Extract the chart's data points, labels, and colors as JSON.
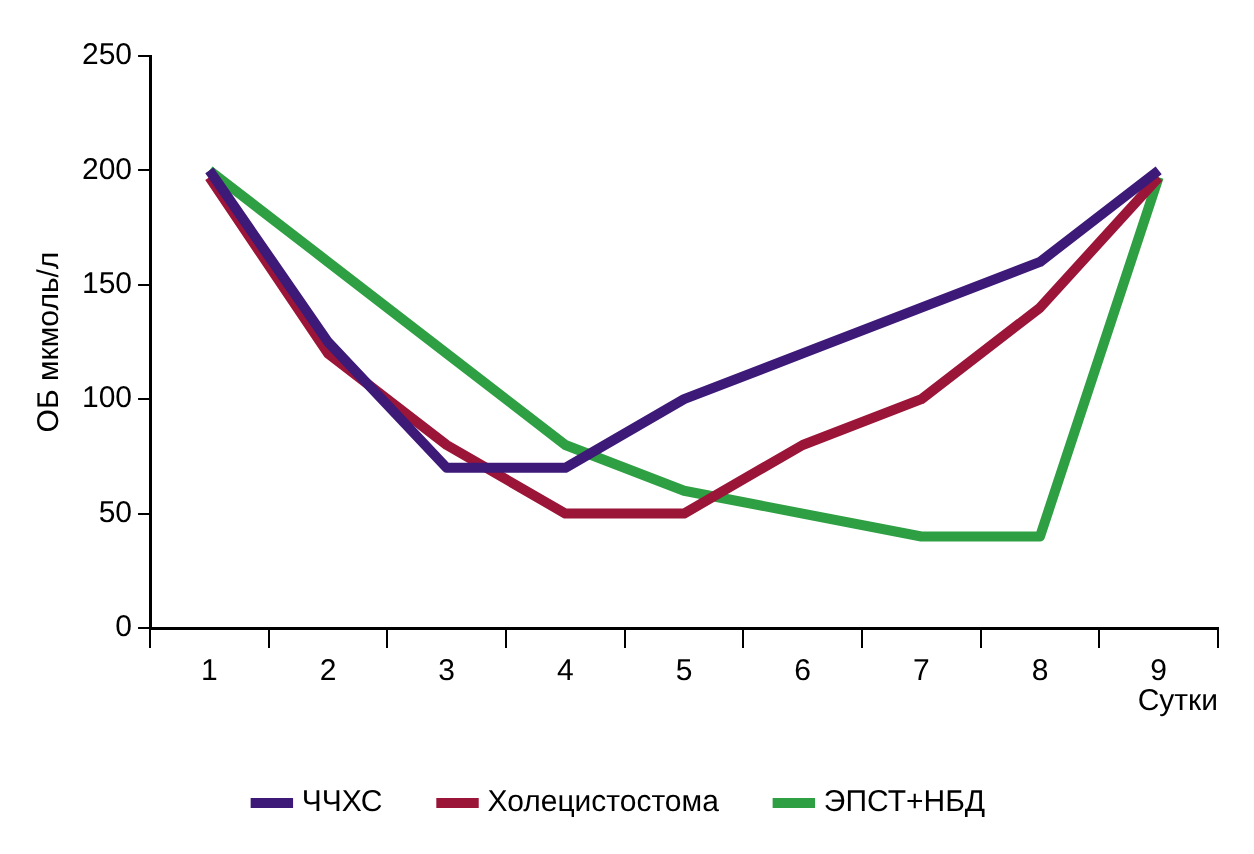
{
  "chart_data": {
    "type": "line",
    "xlabel": "Сутки",
    "ylabel": "ОБ мкмоль/л",
    "categories": [
      "1",
      "2",
      "3",
      "4",
      "5",
      "6",
      "7",
      "8",
      "9"
    ],
    "series": [
      {
        "name": "ЧЧХС",
        "color": "#3d1a78",
        "values": [
          200,
          125,
          70,
          70,
          100,
          120,
          140,
          160,
          200
        ]
      },
      {
        "name": "Холецистостома",
        "color": "#9b1538",
        "values": [
          197,
          120,
          80,
          50,
          50,
          80,
          100,
          140,
          197
        ]
      },
      {
        "name": "ЭПСТ+НБД",
        "color": "#2ea043",
        "values": [
          200,
          160,
          120,
          80,
          60,
          50,
          40,
          40,
          197
        ]
      }
    ],
    "ylim": [
      0,
      250
    ],
    "yticks": [
      0,
      50,
      100,
      150,
      200,
      250
    ],
    "grid": false,
    "legend": "bottom",
    "marker": "none",
    "line_style": "solid"
  }
}
